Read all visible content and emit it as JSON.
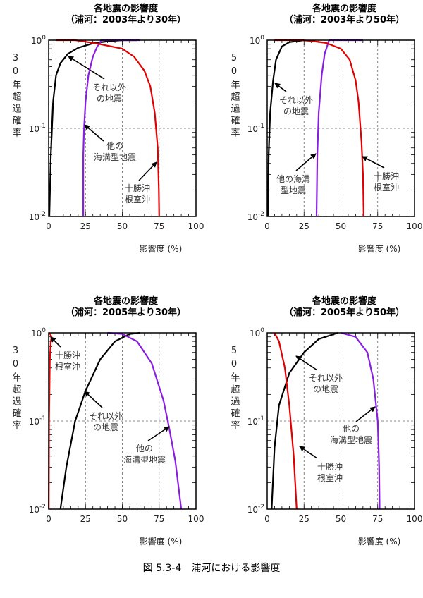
{
  "caption": "図 5.3-4　浦河における影響度",
  "colors": {
    "tokachi": "#e00000",
    "trench": "#8a1ee0",
    "other": "#000000"
  },
  "chart_data": [
    {
      "type": "line",
      "title": "各地震の影響度",
      "subtitle": "（浦河：2003年より30年）",
      "ylabel": "30年超過確率",
      "xlabel": "影響度 (%)",
      "xlim": [
        0,
        100
      ],
      "ylim": [
        0.01,
        1
      ],
      "yscale": "log",
      "xticks": [
        "0",
        "25",
        "50",
        "75",
        "100"
      ],
      "yticks": [
        "10^0",
        "10^-1",
        "10^-2"
      ],
      "grid": true,
      "series": [
        {
          "name": "それ以外の地震",
          "label": [
            "それ以外",
            "の地震"
          ],
          "color": "#000000",
          "points": [
            [
              0.5,
              0.01
            ],
            [
              1.5,
              0.05
            ],
            [
              3,
              0.2
            ],
            [
              5,
              0.4
            ],
            [
              8,
              0.55
            ],
            [
              13,
              0.7
            ],
            [
              20,
              0.82
            ],
            [
              30,
              0.92
            ],
            [
              40,
              0.97
            ],
            [
              50,
              1
            ],
            [
              60,
              1
            ]
          ]
        },
        {
          "name": "他の海溝型地震",
          "label": [
            "他の",
            "海溝型地震"
          ],
          "color": "#8a1ee0",
          "points": [
            [
              23.5,
              0.01
            ],
            [
              23.5,
              0.05
            ],
            [
              24,
              0.1
            ],
            [
              25,
              0.2
            ],
            [
              27,
              0.4
            ],
            [
              30,
              0.65
            ],
            [
              33,
              0.85
            ],
            [
              35,
              0.93
            ],
            [
              35.5,
              1
            ],
            [
              62,
              1
            ]
          ]
        },
        {
          "name": "十勝沖根室沖",
          "label": [
            "十勝沖",
            "根室沖"
          ],
          "color": "#e00000",
          "points": [
            [
              5,
              1
            ],
            [
              18,
              1
            ],
            [
              25,
              0.96
            ],
            [
              35,
              0.9
            ],
            [
              50,
              0.8
            ],
            [
              58,
              0.65
            ],
            [
              65,
              0.45
            ],
            [
              69,
              0.3
            ],
            [
              72,
              0.15
            ],
            [
              74,
              0.06
            ],
            [
              74.8,
              0.02
            ],
            [
              75,
              0.01
            ]
          ]
        }
      ]
    },
    {
      "type": "line",
      "title": "各地震の影響度",
      "subtitle": "（浦河：2003年より50年）",
      "ylabel": "50年超過確率",
      "xlabel": "影響度 (%)",
      "xlim": [
        0,
        100
      ],
      "ylim": [
        0.01,
        1
      ],
      "yscale": "log",
      "xticks": [
        "0",
        "25",
        "50",
        "75",
        "100"
      ],
      "yticks": [
        "10^0",
        "10^-1",
        "10^-2"
      ],
      "grid": true,
      "series": [
        {
          "name": "それ以外の地震",
          "label": [
            "それ以外",
            "の地震"
          ],
          "color": "#000000",
          "points": [
            [
              0.5,
              0.01
            ],
            [
              1,
              0.05
            ],
            [
              2,
              0.15
            ],
            [
              4,
              0.35
            ],
            [
              6,
              0.6
            ],
            [
              10,
              0.85
            ],
            [
              15,
              0.95
            ],
            [
              25,
              1
            ]
          ]
        },
        {
          "name": "他の海溝型地震",
          "label": [
            "他の海溝",
            "型地震"
          ],
          "color": "#8a1ee0",
          "points": [
            [
              33.5,
              0.01
            ],
            [
              34,
              0.05
            ],
            [
              35,
              0.15
            ],
            [
              37,
              0.4
            ],
            [
              39,
              0.7
            ],
            [
              42,
              1
            ],
            [
              65,
              1
            ]
          ]
        },
        {
          "name": "十勝沖根室沖",
          "label": [
            "十勝沖",
            "根室沖"
          ],
          "color": "#e00000",
          "points": [
            [
              5,
              1
            ],
            [
              23,
              1
            ],
            [
              30,
              0.98
            ],
            [
              40,
              0.93
            ],
            [
              50,
              0.8
            ],
            [
              56,
              0.6
            ],
            [
              60,
              0.35
            ],
            [
              62,
              0.2
            ],
            [
              64,
              0.07
            ],
            [
              65,
              0.03
            ],
            [
              65.5,
              0.01
            ]
          ]
        }
      ]
    },
    {
      "type": "line",
      "title": "各地震の影響度",
      "subtitle": "（浦河：2005年より30年）",
      "ylabel": "30年超過確率",
      "xlabel": "影響度 (%)",
      "xlim": [
        0,
        100
      ],
      "ylim": [
        0.01,
        1
      ],
      "yscale": "log",
      "xticks": [
        "0",
        "25",
        "50",
        "75",
        "100"
      ],
      "yticks": [
        "10^0",
        "10^-1",
        "10^-2"
      ],
      "grid": true,
      "series": [
        {
          "name": "十勝沖根室沖",
          "label": [
            "十勝沖",
            "根室沖"
          ],
          "color": "#e00000",
          "points": [
            [
              0,
              1
            ],
            [
              1,
              0.97
            ],
            [
              2,
              0.9
            ],
            [
              1.5,
              0.8
            ],
            [
              0.8,
              0.5
            ],
            [
              0.3,
              0.1
            ],
            [
              0.1,
              0.01
            ]
          ]
        },
        {
          "name": "それ以外の地震",
          "label": [
            "それ以外",
            "の地震"
          ],
          "color": "#000000",
          "points": [
            [
              8,
              0.01
            ],
            [
              12,
              0.03
            ],
            [
              18,
              0.1
            ],
            [
              25,
              0.22
            ],
            [
              35,
              0.5
            ],
            [
              45,
              0.8
            ],
            [
              55,
              0.97
            ],
            [
              62,
              1
            ]
          ]
        },
        {
          "name": "他の海溝型地震",
          "label": [
            "他の",
            "海溝型地震"
          ],
          "color": "#8a1ee0",
          "points": [
            [
              40,
              1
            ],
            [
              50,
              0.97
            ],
            [
              60,
              0.8
            ],
            [
              70,
              0.45
            ],
            [
              78,
              0.17
            ],
            [
              82,
              0.08
            ],
            [
              86,
              0.035
            ],
            [
              90,
              0.01
            ]
          ]
        }
      ]
    },
    {
      "type": "line",
      "title": "各地震の影響度",
      "subtitle": "（浦河：2005年より50年）",
      "ylabel": "50年超過確率",
      "xlabel": "影響度 (%)",
      "xlim": [
        0,
        100
      ],
      "ylim": [
        0.01,
        1
      ],
      "yscale": "log",
      "xticks": [
        "0",
        "25",
        "50",
        "75",
        "100"
      ],
      "yticks": [
        "10^0",
        "10^-1",
        "10^-2"
      ],
      "grid": true,
      "series": [
        {
          "name": "それ以外の地震",
          "label": [
            "それ以外",
            "の地震"
          ],
          "color": "#000000",
          "points": [
            [
              3,
              0.01
            ],
            [
              5,
              0.05
            ],
            [
              8,
              0.15
            ],
            [
              15,
              0.35
            ],
            [
              25,
              0.6
            ],
            [
              35,
              0.85
            ],
            [
              48,
              1
            ]
          ]
        },
        {
          "name": "他の海溝型地震",
          "label": [
            "他の",
            "海溝型地震"
          ],
          "color": "#8a1ee0",
          "points": [
            [
              50,
              1
            ],
            [
              60,
              0.9
            ],
            [
              68,
              0.6
            ],
            [
              72,
              0.3
            ],
            [
              75,
              0.1
            ],
            [
              76,
              0.03
            ],
            [
              76.3,
              0.01
            ]
          ]
        },
        {
          "name": "十勝沖根室沖",
          "label": [
            "十勝沖",
            "根室沖"
          ],
          "color": "#e00000",
          "points": [
            [
              5,
              1
            ],
            [
              8,
              0.8
            ],
            [
              12,
              0.4
            ],
            [
              15,
              0.15
            ],
            [
              18,
              0.04
            ],
            [
              20,
              0.01
            ]
          ]
        }
      ]
    }
  ]
}
